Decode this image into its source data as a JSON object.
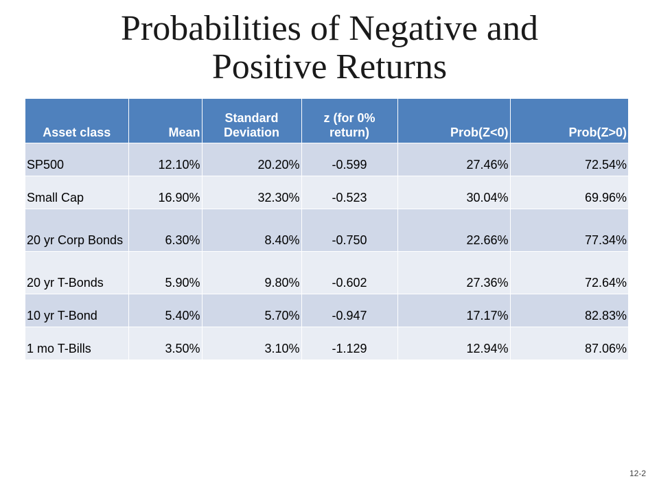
{
  "slide": {
    "title_line1": "Probabilities of Negative and",
    "title_line2": "Positive Returns",
    "page_number": "12-2"
  },
  "table": {
    "headers": [
      "Asset class",
      "Mean",
      "Standard Deviation",
      "z (for 0% return)",
      "Prob(Z<0)",
      "Prob(Z>0)"
    ],
    "rows": [
      [
        "SP500",
        "12.10%",
        "20.20%",
        "-0.599",
        "27.46%",
        "72.54%"
      ],
      [
        "Small Cap",
        "16.90%",
        "32.30%",
        "-0.523",
        "30.04%",
        "69.96%"
      ],
      [
        "20 yr Corp Bonds",
        "6.30%",
        "8.40%",
        "-0.750",
        "22.66%",
        "77.34%"
      ],
      [
        "20 yr T-Bonds",
        "5.90%",
        "9.80%",
        "-0.602",
        "27.36%",
        "72.64%"
      ],
      [
        "10 yr T-Bond",
        "5.40%",
        "5.70%",
        "-0.947",
        "17.17%",
        "82.83%"
      ],
      [
        "1 mo T-Bills",
        "3.50%",
        "3.10%",
        "-1.129",
        "12.94%",
        "87.06%"
      ]
    ]
  },
  "colors": {
    "header_bg": "#4f81bd",
    "row_band_dark": "#d0d8e8",
    "row_band_light": "#e9edf4"
  }
}
